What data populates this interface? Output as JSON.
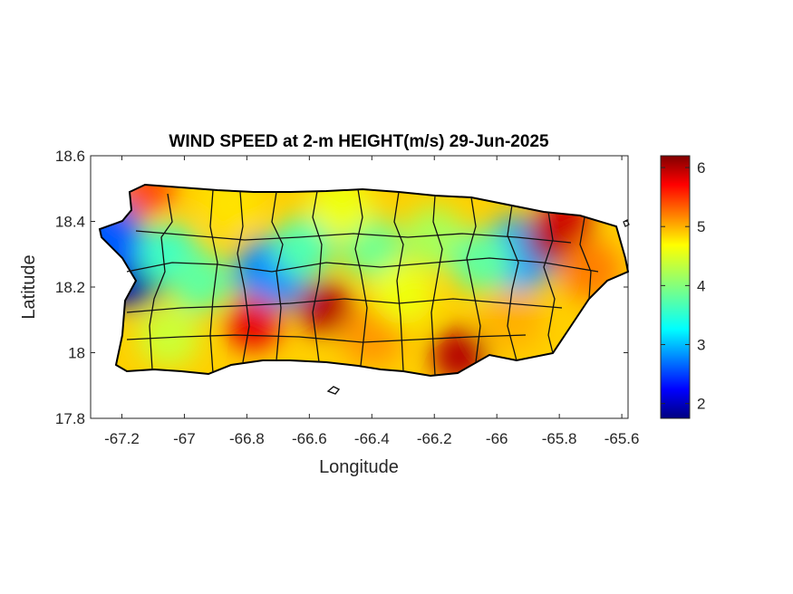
{
  "chart_data": {
    "type": "heatmap",
    "title": "WIND SPEED at 2-m HEIGHT(m/s) 29-Jun-2025",
    "xlabel": "Longitude",
    "ylabel": "Latitude",
    "xlim": [
      -67.3,
      -65.58
    ],
    "ylim": [
      17.8,
      18.6
    ],
    "xticks": [
      -67.2,
      -67,
      -66.8,
      -66.6,
      -66.4,
      -66.2,
      -66,
      -65.8,
      -65.6
    ],
    "yticks": [
      17.8,
      18,
      18.2,
      18.4,
      18.6
    ],
    "colorbar": {
      "colormap": "jet",
      "range": [
        1.75,
        6.2
      ],
      "ticks": [
        2,
        3,
        4,
        5,
        6
      ]
    },
    "hotspots": [
      {
        "lon": -67.18,
        "lat": 18.25,
        "value": 1.9
      },
      {
        "lon": -67.25,
        "lat": 18.35,
        "value": 2.6
      },
      {
        "lon": -66.72,
        "lat": 18.24,
        "value": 2.8
      },
      {
        "lon": -65.93,
        "lat": 18.3,
        "value": 2.9
      },
      {
        "lon": -66.55,
        "lat": 18.14,
        "value": 6.0
      },
      {
        "lon": -66.78,
        "lat": 18.09,
        "value": 5.8
      },
      {
        "lon": -66.12,
        "lat": 17.99,
        "value": 6.0
      },
      {
        "lon": -65.82,
        "lat": 18.35,
        "value": 6.1
      },
      {
        "lon": -65.78,
        "lat": 18.4,
        "value": 5.9
      },
      {
        "lon": -67.12,
        "lat": 18.5,
        "value": 5.4
      }
    ]
  }
}
